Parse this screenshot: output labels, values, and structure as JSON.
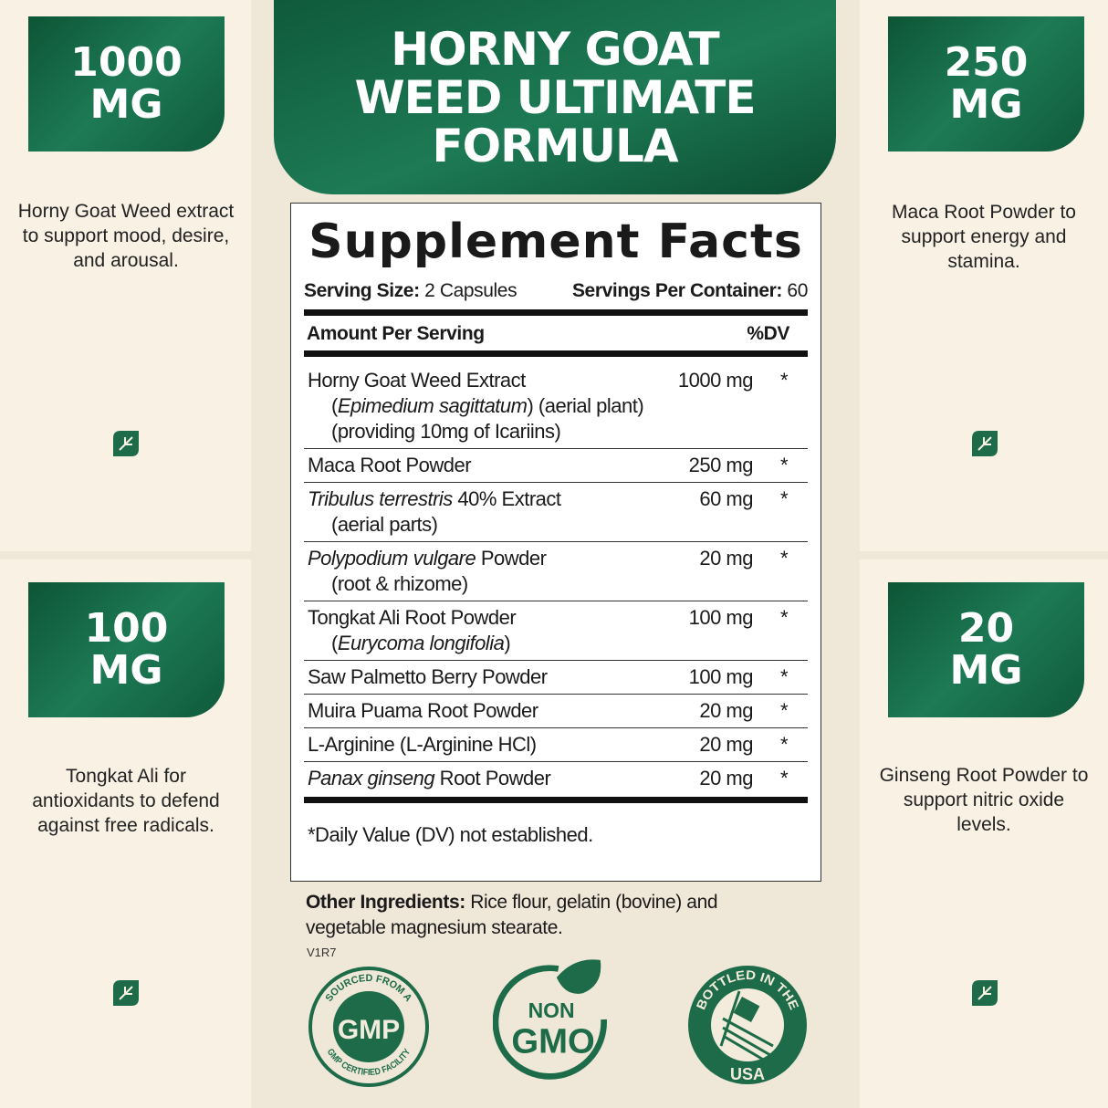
{
  "colors": {
    "brand_green": "#14694a",
    "background": "#f8f1e4"
  },
  "title": {
    "line1": "HORNY GOAT",
    "line2": "WEED ULTIMATE",
    "line3": "FORMULA"
  },
  "callouts": [
    {
      "amount": "1000",
      "unit": "MG",
      "text": "Horny Goat Weed extract to support mood, desire, and arousal.",
      "icon": "leaf-icon"
    },
    {
      "amount": "250",
      "unit": "MG",
      "text": "Maca Root Powder to support energy and stamina.",
      "icon": "leaf-icon"
    },
    {
      "amount": "100",
      "unit": "MG",
      "text": "Tongkat Ali for antioxidants to defend against free radicals.",
      "icon": "leaf-icon"
    },
    {
      "amount": "20",
      "unit": "MG",
      "text": "Ginseng Root Powder to support nitric oxide levels.",
      "icon": "leaf-icon"
    }
  ],
  "facts": {
    "title": "Supplement Facts",
    "serving_size_label": "Serving Size:",
    "serving_size": " 2 Capsules",
    "servings_label": "Servings Per Container:",
    "servings": " 60",
    "amount_header": "Amount Per Serving",
    "dv_header": "%DV",
    "rows": [
      {
        "lines": [
          [
            {
              "t": "Horny Goat Weed Extract"
            }
          ],
          [
            {
              "t": "(",
              "i": false
            },
            {
              "t": "Epimedium sagittatum",
              "i": true
            },
            {
              "t": ") (aerial plant)"
            }
          ],
          [
            {
              "t": "(providing 10mg of Icariins)"
            }
          ]
        ],
        "amount": "1000 mg",
        "dv": "*"
      },
      {
        "lines": [
          [
            {
              "t": "Maca Root Powder"
            }
          ]
        ],
        "amount": "250 mg",
        "dv": "*"
      },
      {
        "lines": [
          [
            {
              "t": "Tribulus terrestris",
              "i": true
            },
            {
              "t": " 40% Extract"
            }
          ],
          [
            {
              "t": "(aerial parts)"
            }
          ]
        ],
        "amount": "60 mg",
        "dv": "*"
      },
      {
        "lines": [
          [
            {
              "t": "Polypodium vulgare",
              "i": true
            },
            {
              "t": " Powder"
            }
          ],
          [
            {
              "t": "(root & rhizome)"
            }
          ]
        ],
        "amount": "20 mg",
        "dv": "*"
      },
      {
        "lines": [
          [
            {
              "t": "Tongkat Ali Root Powder"
            }
          ],
          [
            {
              "t": "("
            },
            {
              "t": "Eurycoma longifolia",
              "i": true
            },
            {
              "t": ")"
            }
          ]
        ],
        "amount": "100 mg",
        "dv": "*"
      },
      {
        "lines": [
          [
            {
              "t": "Saw Palmetto Berry Powder"
            }
          ]
        ],
        "amount": "100 mg",
        "dv": "*"
      },
      {
        "lines": [
          [
            {
              "t": "Muira Puama Root Powder"
            }
          ]
        ],
        "amount": "20 mg",
        "dv": "*"
      },
      {
        "lines": [
          [
            {
              "t": "L-Arginine (L-Arginine HCl)"
            }
          ]
        ],
        "amount": "20 mg",
        "dv": "*"
      },
      {
        "lines": [
          [
            {
              "t": "Panax ginseng",
              "i": true
            },
            {
              "t": " Root Powder"
            }
          ]
        ],
        "amount": "20 mg",
        "dv": "*"
      }
    ],
    "footnote": "*Daily Value (DV) not established."
  },
  "other_ingredients": {
    "label": "Other Ingredients:",
    "text": " Rice flour, gelatin (bovine) and vegetable magnesium stearate."
  },
  "version": "V1R7",
  "seals": {
    "gmp": {
      "top": "SOURCED FROM A",
      "center": "GMP",
      "bottom": "GMP CERTIFIED FACILITY"
    },
    "nongmo": {
      "line1": "NON",
      "line2": "GMO"
    },
    "usa": {
      "top": "BOTTLED IN THE",
      "bottom": "USA"
    }
  }
}
